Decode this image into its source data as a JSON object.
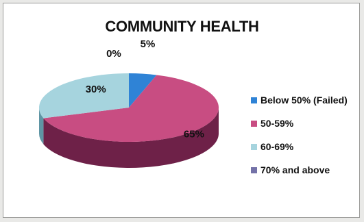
{
  "chart_data": {
    "type": "pie",
    "title": "COMMUNITY HEALTH",
    "categories": [
      "Below 50% (Failed)",
      "50-59%",
      "60-69%",
      "70% and above"
    ],
    "values": [
      5,
      65,
      30,
      0
    ],
    "data_labels": [
      "5%",
      "65%",
      "30%",
      "0%"
    ],
    "colors": [
      "#2f83d6",
      "#c84d82",
      "#a6d4de",
      "#7472a8"
    ],
    "side_colors": [
      "#1d5f9f",
      "#6e2148",
      "#5f95a4",
      "#47467a"
    ],
    "legend_position": "right",
    "three_d": true
  }
}
